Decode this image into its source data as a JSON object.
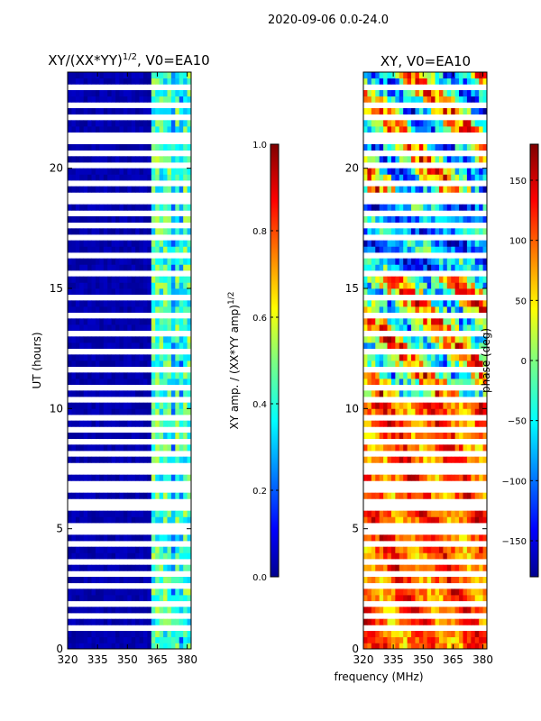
{
  "suptitle": "2020-09-06 0.0-24.0",
  "chart_data": [
    {
      "type": "heatmap",
      "title": "XY/(XX*YY)^1/2, V0=EA10",
      "title_main": "XY/(XX*YY)",
      "title_exp": "1/2",
      "title_suffix": ", V0=EA10",
      "xlabel": "",
      "ylabel": "UT (hours)",
      "xlim": [
        320,
        382
      ],
      "ylim": [
        0,
        24
      ],
      "xticks": [
        320,
        335,
        350,
        365,
        380
      ],
      "yticks": [
        0,
        5,
        10,
        15,
        20
      ],
      "colorbar": {
        "label": "XY amp. / (XX*YY amp)^1/2",
        "label_main": "XY amp. / (XX*YY amp)",
        "label_exp": "1/2",
        "range": [
          0.0,
          1.0
        ],
        "ticks": [
          "0.0",
          "0.2",
          "0.4",
          "0.6",
          "0.8",
          "1.0"
        ],
        "colormap": "jet"
      },
      "flagged_hours": [
        0.8,
        1.4,
        1.9,
        2.6,
        3.1,
        3.7,
        4.3,
        4.9,
        5.2,
        5.8,
        6.2,
        6.6,
        6.9,
        7.3,
        7.6,
        8.1,
        8.6,
        9.2,
        9.7,
        10.3,
        10.8,
        11.6,
        12.4,
        13.1,
        13.8,
        14.5,
        15.5,
        15.7,
        16.3,
        17.0,
        17.6,
        18.2,
        18.6,
        18.8,
        19.4,
        20.0,
        20.5,
        21.0,
        21.4,
        22.1,
        22.7,
        23.3
      ],
      "signal_channels_mhz": [
        364,
        368,
        371,
        375,
        379,
        381
      ]
    },
    {
      "type": "heatmap",
      "title": "XY, V0=EA10",
      "xlabel": "frequency (MHz)",
      "ylabel": "",
      "xlim": [
        320,
        382
      ],
      "ylim": [
        0,
        24
      ],
      "xticks": [
        320,
        335,
        350,
        365,
        380
      ],
      "yticks": [
        0,
        5,
        10,
        15,
        20
      ],
      "colorbar": {
        "label": "phase (deg)",
        "range": [
          -180,
          180
        ],
        "ticks": [
          "−150",
          "−100",
          "−50",
          "0",
          "50",
          "100",
          "150"
        ],
        "colormap": "jet"
      }
    }
  ]
}
